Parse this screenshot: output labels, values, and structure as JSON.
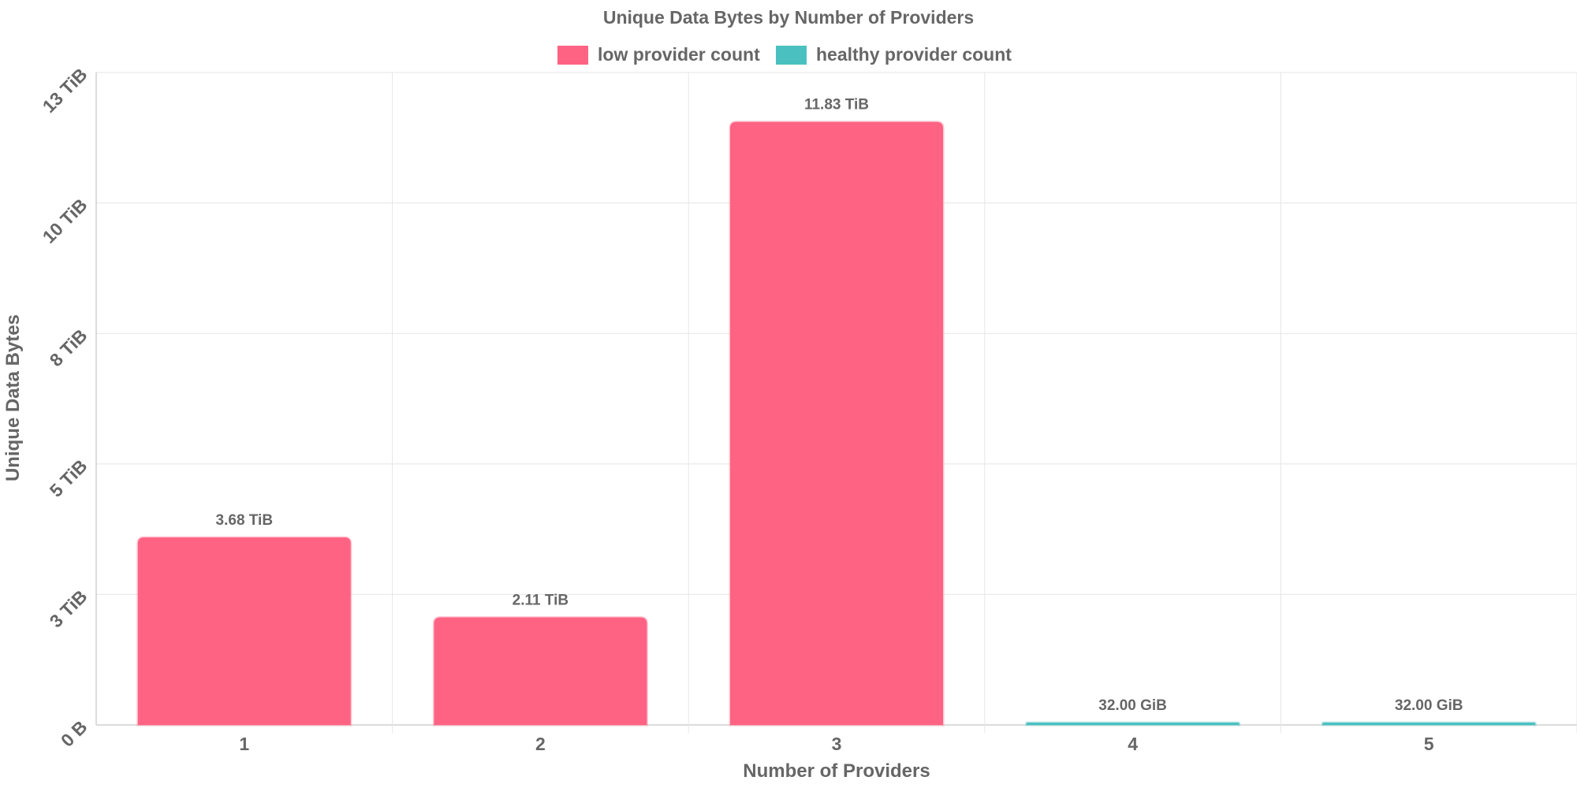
{
  "chart_data": {
    "type": "bar",
    "title": "Unique Data Bytes by Number of Providers",
    "xlabel": "Number of Providers",
    "ylabel": "Unique Data Bytes",
    "categories": [
      "1",
      "2",
      "3",
      "4",
      "5"
    ],
    "values_tib": [
      3.68,
      2.11,
      11.83,
      0.03125,
      0.03125
    ],
    "data_labels": [
      "3.68 TiB",
      "2.11 TiB",
      "11.83 TiB",
      "32.00 GiB",
      "32.00 GiB"
    ],
    "bar_series": [
      "low provider count",
      "low provider count",
      "low provider count",
      "healthy provider count",
      "healthy provider count"
    ],
    "ylim_tib": [
      0,
      12.8
    ],
    "y_ticks": [
      {
        "value": 0,
        "label": "0 B"
      },
      {
        "value": 2.56,
        "label": "3 TiB"
      },
      {
        "value": 5.12,
        "label": "5 TiB"
      },
      {
        "value": 7.68,
        "label": "8 TiB"
      },
      {
        "value": 10.24,
        "label": "10 TiB"
      },
      {
        "value": 12.8,
        "label": "13 TiB"
      }
    ],
    "grid": true,
    "legend_position": "top-center",
    "legend": [
      {
        "name": "low provider count",
        "color": "#ff6384"
      },
      {
        "name": "healthy provider count",
        "color": "#4bc0c0"
      }
    ],
    "colors": {
      "low provider count": "#ff6384",
      "healthy provider count": "#4bc0c0"
    }
  }
}
